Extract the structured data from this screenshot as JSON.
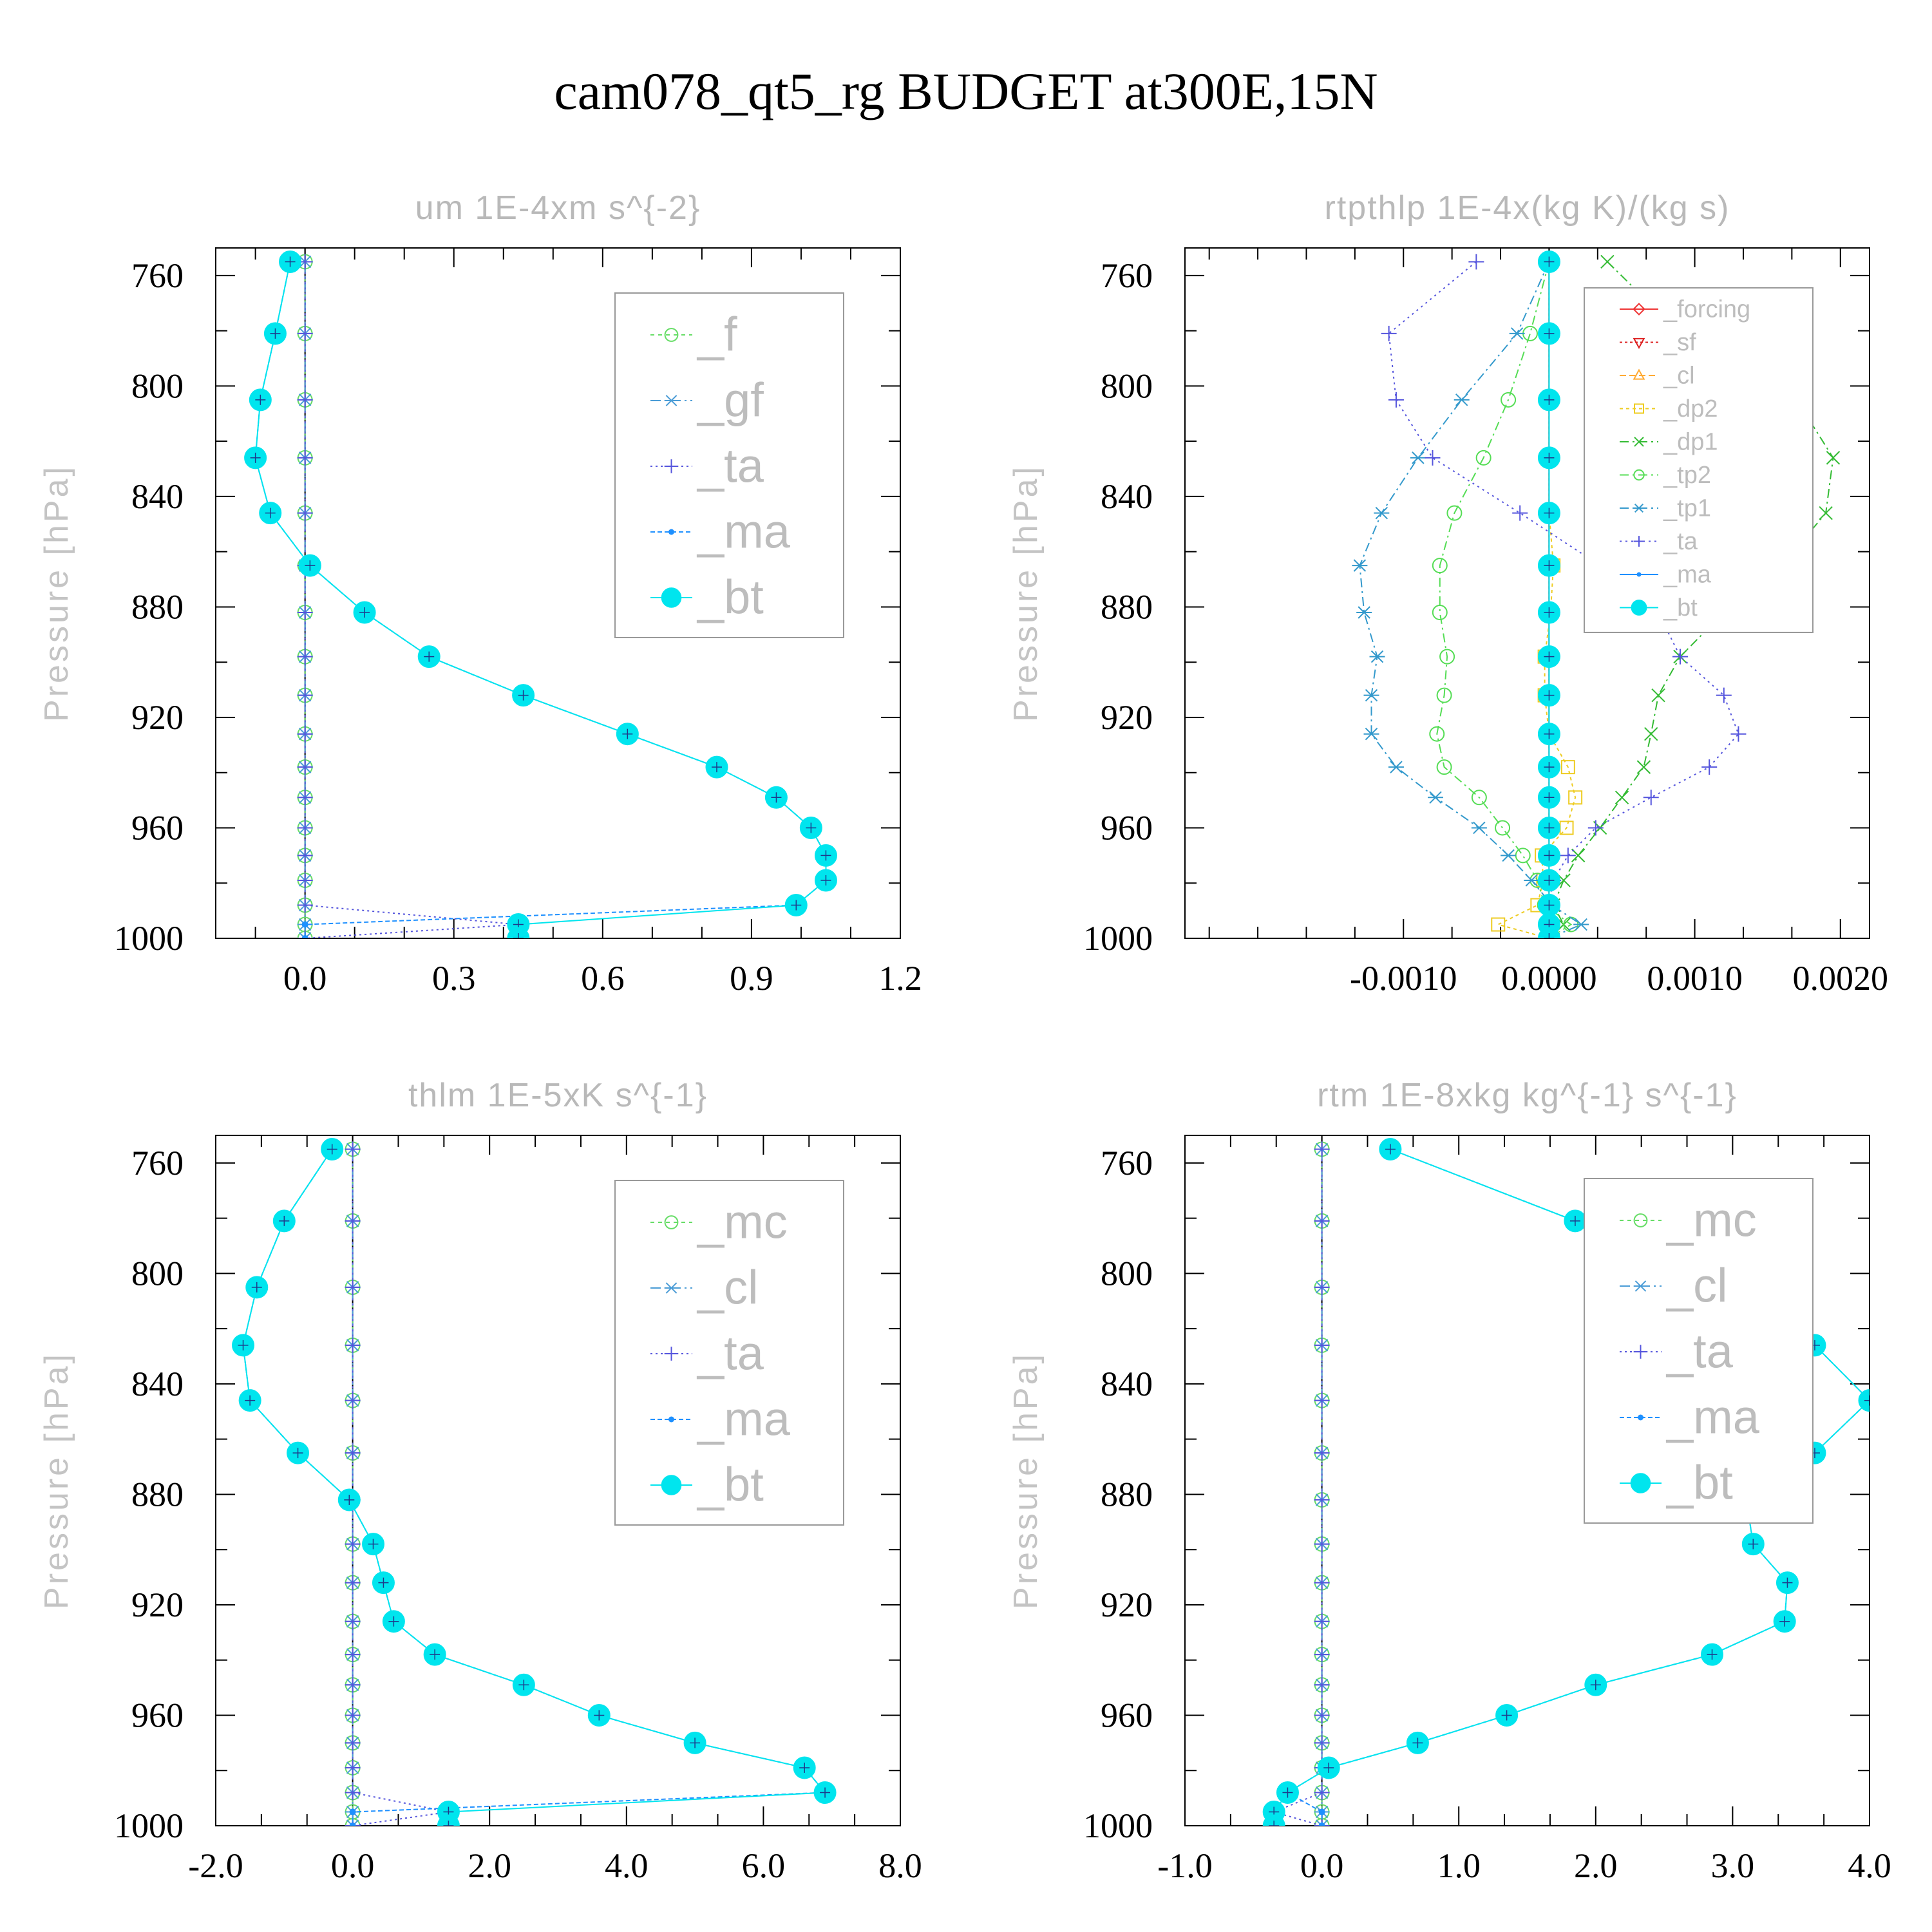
{
  "title": "cam078_qt5_rg  BUDGET at300E,15N",
  "chart_data": [
    {
      "type": "line",
      "title": "um  1E-4xm s^{-2}",
      "xlabel": "",
      "ylabel": "Pressure [hPa]",
      "xlim": [
        -0.18,
        1.2
      ],
      "ylim": [
        1000,
        750
      ],
      "xticks": [
        "0.0",
        "0.3",
        "0.6",
        "0.9",
        "1.2"
      ],
      "xtick_values": [
        0.0,
        0.3,
        0.6,
        0.9,
        1.2
      ],
      "yticks": [
        "760",
        "800",
        "840",
        "880",
        "920",
        "960",
        "1000"
      ],
      "ytick_values": [
        760,
        800,
        840,
        880,
        920,
        960,
        1000
      ],
      "legend_placement": "top-right",
      "levels": [
        755,
        781,
        805,
        826,
        846,
        865,
        882,
        898,
        912,
        926,
        938,
        949,
        960,
        970,
        979,
        988,
        995,
        1000
      ],
      "series": [
        {
          "name": "_f",
          "color": "#66dd66",
          "marker": "circle",
          "dash": "6,6",
          "values": [
            0,
            0,
            0,
            0,
            0,
            0,
            0,
            0,
            0,
            0,
            0,
            0,
            0,
            0,
            0,
            0,
            0,
            0
          ]
        },
        {
          "name": "_gf",
          "color": "#4a9cd6",
          "marker": "asterisk",
          "dash": "16,6,3,6",
          "values": [
            0,
            0,
            0,
            0,
            0,
            0,
            0,
            0,
            0,
            0,
            0,
            0,
            0,
            0,
            0,
            0,
            0,
            0
          ]
        },
        {
          "name": "_ta",
          "color": "#5555dd",
          "marker": "plus",
          "dash": "3,5",
          "values": [
            0,
            0,
            0,
            0,
            0,
            0,
            0,
            0,
            0,
            0,
            0,
            0,
            0,
            0,
            0,
            0,
            0.43,
            0
          ]
        },
        {
          "name": "_ma",
          "color": "#1e90ff",
          "marker": "dot",
          "dash": "7,4",
          "values": [
            -0.03,
            -0.06,
            -0.09,
            -0.1,
            -0.07,
            0.01,
            0.12,
            0.25,
            0.44,
            0.65,
            0.83,
            0.95,
            1.02,
            1.05,
            1.05,
            0.99,
            0.0,
            0.0
          ]
        },
        {
          "name": "_bt",
          "color": "#00e5ee",
          "marker": "filled",
          "dash": "",
          "values": [
            -0.03,
            -0.06,
            -0.09,
            -0.1,
            -0.07,
            0.01,
            0.12,
            0.25,
            0.44,
            0.65,
            0.83,
            0.95,
            1.02,
            1.05,
            1.05,
            0.99,
            0.43,
            0.43
          ]
        }
      ]
    },
    {
      "type": "line",
      "title": "rtpthlp  1E-4x(kg K)/(kg s)",
      "xlabel": "",
      "ylabel": "Pressure [hPa]",
      "xlim": [
        -0.0025,
        0.0022
      ],
      "ylim": [
        1000,
        750
      ],
      "xticks": [
        "-0.0010",
        "0.0000",
        "0.0010",
        "0.0020"
      ],
      "xtick_values": [
        -0.001,
        0.0,
        0.001,
        0.002
      ],
      "yticks": [
        "760",
        "800",
        "840",
        "880",
        "920",
        "960",
        "1000"
      ],
      "ytick_values": [
        760,
        800,
        840,
        880,
        920,
        960,
        1000
      ],
      "legend_placement": "top-right",
      "levels": [
        755,
        781,
        805,
        826,
        846,
        865,
        882,
        898,
        912,
        926,
        938,
        949,
        960,
        970,
        979,
        988,
        995,
        1000
      ],
      "series": [
        {
          "name": "_forcing",
          "color": "#ee3333",
          "marker": "diamond",
          "dash": "",
          "values": [
            0,
            0,
            0,
            0,
            0,
            0,
            0,
            0,
            0,
            0,
            0,
            0,
            0,
            0,
            0,
            0,
            0,
            0
          ]
        },
        {
          "name": "_sf",
          "color": "#dd2222",
          "marker": "tri-down",
          "dash": "4,4",
          "values": [
            0,
            0,
            0,
            0,
            0,
            0,
            0,
            0,
            0,
            0,
            0,
            0,
            0,
            0,
            0,
            0,
            0,
            0
          ]
        },
        {
          "name": "_cl",
          "color": "#ffaa33",
          "marker": "tri-up",
          "dash": "10,5",
          "values": [
            0,
            0,
            0,
            0,
            0,
            0,
            0,
            0,
            0,
            0,
            0,
            0,
            0,
            0,
            0,
            0,
            0,
            0
          ]
        },
        {
          "name": "_dp2",
          "color": "#eecc22",
          "marker": "square",
          "dash": "5,5",
          "values": [
            0,
            0,
            0,
            0,
            0,
            3e-05,
            1e-05,
            -3e-05,
            -3e-05,
            0,
            0.00013,
            0.00018,
            0.00012,
            -5e-05,
            -4e-05,
            -8e-05,
            -0.00035,
            0
          ]
        },
        {
          "name": "_dp1",
          "color": "#33bb33",
          "marker": "x",
          "dash": "14,6,3,6",
          "values": [
            0.0004,
            0.0009,
            0.0017,
            0.00195,
            0.0019,
            0.0016,
            0.0012,
            0.0009,
            0.00075,
            0.0007,
            0.00065,
            0.0005,
            0.00035,
            0.0002,
            0.0001,
            3e-05,
            0.0001,
            0
          ]
        },
        {
          "name": "_tp2",
          "color": "#55dd55",
          "marker": "circle",
          "dash": "14,6,3,6",
          "values": [
            0,
            -0.00013,
            -0.00028,
            -0.00045,
            -0.00065,
            -0.00075,
            -0.00075,
            -0.0007,
            -0.00072,
            -0.00077,
            -0.00072,
            -0.00048,
            -0.00032,
            -0.00018,
            -8e-05,
            -3e-05,
            0.00015,
            0
          ]
        },
        {
          "name": "_tp1",
          "color": "#3399cc",
          "marker": "asterisk",
          "dash": "14,6,3,6",
          "values": [
            0,
            -0.00022,
            -0.0006,
            -0.0009,
            -0.00115,
            -0.0013,
            -0.00127,
            -0.00118,
            -0.00122,
            -0.00122,
            -0.00105,
            -0.00078,
            -0.00048,
            -0.00028,
            -0.00012,
            2e-05,
            0.00022,
            0
          ]
        },
        {
          "name": "_ta",
          "color": "#5555dd",
          "marker": "plus",
          "dash": "3,6",
          "values": [
            -0.0005,
            -0.0011,
            -0.00105,
            -0.0008,
            -0.0002,
            0.00035,
            0.00075,
            0.0009,
            0.0012,
            0.0013,
            0.0011,
            0.0007,
            0.00032,
            0.00013,
            3e-05,
            0,
            0,
            0
          ]
        },
        {
          "name": "_ma",
          "color": "#1e90ff",
          "marker": "dot",
          "dash": "",
          "values": [
            0,
            0,
            0,
            0,
            0,
            0,
            0,
            0,
            0,
            0,
            0,
            0,
            0,
            0,
            0,
            0,
            0,
            0
          ]
        },
        {
          "name": "_bt",
          "color": "#00e5ee",
          "marker": "filled",
          "dash": "",
          "values": [
            0,
            0,
            0,
            0,
            0,
            0,
            0,
            0,
            0,
            0,
            0,
            0,
            0,
            0,
            0,
            0,
            0,
            0
          ]
        }
      ]
    },
    {
      "type": "line",
      "title": "thlm  1E-5xK s^{-1}",
      "xlabel": "",
      "ylabel": "Pressure [hPa]",
      "xlim": [
        -2.0,
        8.0
      ],
      "ylim": [
        1000,
        750
      ],
      "xticks": [
        "-2.0",
        "0.0",
        "2.0",
        "4.0",
        "6.0",
        "8.0"
      ],
      "xtick_values": [
        -2.0,
        0.0,
        2.0,
        4.0,
        6.0,
        8.0
      ],
      "yticks": [
        "760",
        "800",
        "840",
        "880",
        "920",
        "960",
        "1000"
      ],
      "ytick_values": [
        760,
        800,
        840,
        880,
        920,
        960,
        1000
      ],
      "legend_placement": "top-right",
      "levels": [
        755,
        781,
        805,
        826,
        846,
        865,
        882,
        898,
        912,
        926,
        938,
        949,
        960,
        970,
        979,
        988,
        995,
        1000
      ],
      "series": [
        {
          "name": "_mc",
          "color": "#66dd66",
          "marker": "circle",
          "dash": "6,6",
          "values": [
            0,
            0,
            0,
            0,
            0,
            0,
            0,
            0,
            0,
            0,
            0,
            0,
            0,
            0,
            0,
            0,
            0,
            0
          ]
        },
        {
          "name": "_cl",
          "color": "#4a9cd6",
          "marker": "asterisk",
          "dash": "16,6,3,6",
          "values": [
            0,
            0,
            0,
            0,
            0,
            0,
            0,
            0,
            0,
            0,
            0,
            0,
            0,
            0,
            0,
            0,
            0,
            0
          ]
        },
        {
          "name": "_ta",
          "color": "#5555dd",
          "marker": "plus",
          "dash": "3,5",
          "values": [
            0,
            0,
            0,
            0,
            0,
            0,
            0,
            0,
            0,
            0,
            0,
            0,
            0,
            0,
            0,
            0,
            1.4,
            0
          ]
        },
        {
          "name": "_ma",
          "color": "#1e90ff",
          "marker": "dot",
          "dash": "7,4",
          "values": [
            -0.3,
            -1.0,
            -1.4,
            -1.6,
            -1.5,
            -0.8,
            -0.05,
            0.3,
            0.45,
            0.6,
            1.2,
            2.5,
            3.6,
            5.0,
            6.6,
            6.9,
            0.0,
            0.0
          ]
        },
        {
          "name": "_bt",
          "color": "#00e5ee",
          "marker": "filled",
          "dash": "",
          "values": [
            -0.3,
            -1.0,
            -1.4,
            -1.6,
            -1.5,
            -0.8,
            -0.05,
            0.3,
            0.45,
            0.6,
            1.2,
            2.5,
            3.6,
            5.0,
            6.6,
            6.9,
            1.4,
            1.4
          ]
        }
      ]
    },
    {
      "type": "line",
      "title": "rtm  1E-8xkg kg^{-1} s^{-1}",
      "xlabel": "",
      "ylabel": "Pressure [hPa]",
      "xlim": [
        -1.0,
        4.0
      ],
      "ylim": [
        1000,
        750
      ],
      "xticks": [
        "-1.0",
        "0.0",
        "1.0",
        "2.0",
        "3.0",
        "4.0"
      ],
      "xtick_values": [
        -1.0,
        0.0,
        1.0,
        2.0,
        3.0,
        4.0
      ],
      "yticks": [
        "760",
        "800",
        "840",
        "880",
        "920",
        "960",
        "1000"
      ],
      "ytick_values": [
        760,
        800,
        840,
        880,
        920,
        960,
        1000
      ],
      "legend_placement": "top-right",
      "levels": [
        755,
        781,
        805,
        826,
        846,
        865,
        882,
        898,
        912,
        926,
        938,
        949,
        960,
        970,
        979,
        988,
        995,
        1000
      ],
      "series": [
        {
          "name": "_mc",
          "color": "#66dd66",
          "marker": "circle",
          "dash": "6,6",
          "values": [
            0,
            0,
            0,
            0,
            0,
            0,
            0,
            0,
            0,
            0,
            0,
            0,
            0,
            0,
            0,
            0,
            0,
            0
          ]
        },
        {
          "name": "_cl",
          "color": "#4a9cd6",
          "marker": "asterisk",
          "dash": "16,6,3,6",
          "values": [
            0,
            0,
            0,
            0,
            0,
            0,
            0,
            0,
            0,
            0,
            0,
            0,
            0,
            0,
            0,
            0,
            0,
            0
          ]
        },
        {
          "name": "_ta",
          "color": "#5555dd",
          "marker": "plus",
          "dash": "3,5",
          "values": [
            0,
            0,
            0,
            0,
            0,
            0,
            0,
            0,
            0,
            0,
            0,
            0,
            0,
            0,
            0,
            0,
            -0.35,
            0
          ]
        },
        {
          "name": "_ma",
          "color": "#1e90ff",
          "marker": "dot",
          "dash": "7,4",
          "values": [
            0.5,
            1.85,
            2.85,
            3.6,
            4.0,
            3.6,
            3.1,
            3.15,
            3.4,
            3.38,
            2.85,
            2.0,
            1.35,
            0.7,
            0.05,
            -0.25,
            0.0,
            0.0
          ]
        },
        {
          "name": "_bt",
          "color": "#00e5ee",
          "marker": "filled",
          "dash": "",
          "values": [
            0.5,
            1.85,
            2.85,
            3.6,
            4.0,
            3.6,
            3.1,
            3.15,
            3.4,
            3.38,
            2.85,
            2.0,
            1.35,
            0.7,
            0.05,
            -0.25,
            -0.35,
            -0.35
          ]
        }
      ]
    }
  ]
}
